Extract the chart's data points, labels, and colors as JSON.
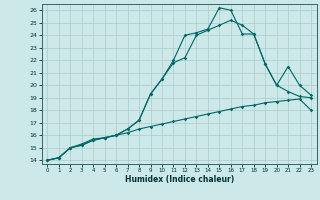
{
  "xlabel": "Humidex (Indice chaleur)",
  "bg_color": "#cce8e8",
  "grid_color": "#aacccc",
  "line_color": "#006666",
  "xlim_min": -0.5,
  "xlim_max": 23.5,
  "ylim_min": 13.7,
  "ylim_max": 26.5,
  "xticks": [
    0,
    1,
    2,
    3,
    4,
    5,
    6,
    7,
    8,
    9,
    10,
    11,
    12,
    13,
    14,
    15,
    16,
    17,
    18,
    19,
    20,
    21,
    22,
    23
  ],
  "yticks": [
    14,
    15,
    16,
    17,
    18,
    19,
    20,
    21,
    22,
    23,
    24,
    25,
    26
  ],
  "line1_x": [
    0,
    1,
    2,
    3,
    4,
    5,
    6,
    7,
    8,
    9,
    10,
    11,
    12,
    13,
    14,
    15,
    16,
    17,
    18,
    19,
    20,
    21,
    22,
    23
  ],
  "line1_y": [
    14.0,
    14.2,
    15.0,
    15.3,
    15.7,
    15.8,
    16.0,
    16.2,
    16.5,
    16.7,
    16.9,
    17.1,
    17.3,
    17.5,
    17.7,
    17.9,
    18.1,
    18.3,
    18.4,
    18.6,
    18.7,
    18.8,
    18.9,
    18.0
  ],
  "line2_x": [
    0,
    1,
    2,
    3,
    4,
    5,
    6,
    7,
    8,
    9,
    10,
    11,
    12,
    13,
    14,
    15,
    16,
    17,
    18,
    19,
    20,
    21,
    22,
    23
  ],
  "line2_y": [
    14.0,
    14.2,
    15.0,
    15.2,
    15.6,
    15.8,
    16.0,
    16.5,
    17.2,
    19.3,
    20.5,
    21.8,
    22.2,
    24.0,
    24.4,
    24.8,
    25.2,
    24.8,
    24.1,
    21.7,
    20.0,
    19.5,
    19.1,
    19.0
  ],
  "line3_x": [
    0,
    1,
    2,
    3,
    4,
    5,
    6,
    7,
    8,
    9,
    10,
    11,
    12,
    13,
    14,
    15,
    16,
    17,
    18,
    19,
    20,
    21,
    22,
    23
  ],
  "line3_y": [
    14.0,
    14.2,
    15.0,
    15.2,
    15.6,
    15.8,
    16.0,
    16.5,
    17.2,
    19.3,
    20.5,
    22.0,
    24.0,
    24.2,
    24.5,
    26.2,
    26.0,
    24.1,
    24.1,
    21.7,
    20.0,
    21.5,
    20.0,
    19.2
  ]
}
